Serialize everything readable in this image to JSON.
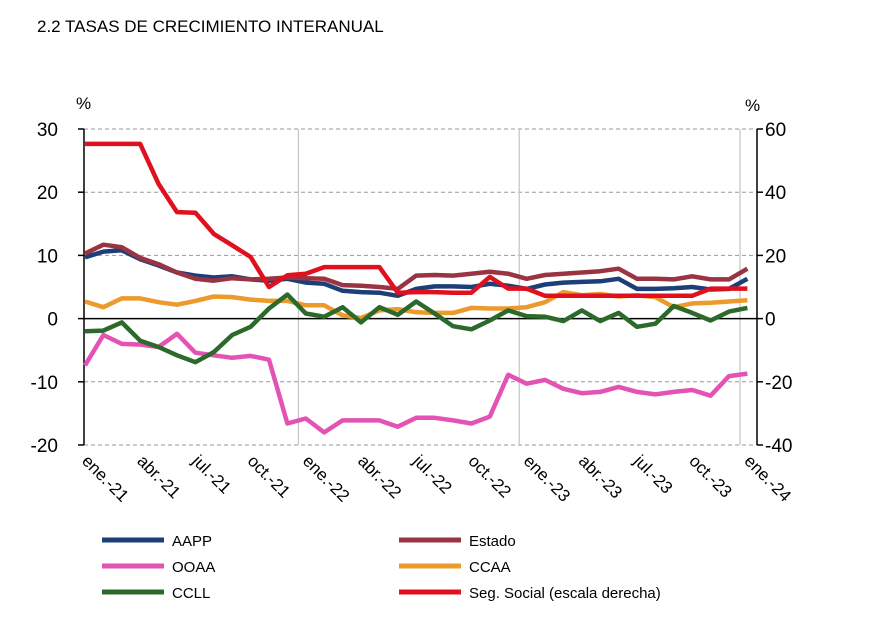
{
  "chart_data": {
    "type": "line",
    "title": "2.2 TASAS DE CRECIMIENTO INTERANUAL",
    "ylabel_left": "%",
    "ylabel_right": "%",
    "ylim_left": [
      -20,
      30
    ],
    "ylim_right": [
      -40,
      60
    ],
    "yticks_left": [
      "30",
      "20",
      "10",
      "0",
      "-10",
      "-20"
    ],
    "yticks_right": [
      "60",
      "40",
      "20",
      "0",
      "-20",
      "-40"
    ],
    "ytick_values_left": [
      30,
      20,
      10,
      0,
      -10,
      -20
    ],
    "xtick_labels": [
      "ene.-21",
      "abr.-21",
      "jul.-21",
      "oct.-21",
      "ene.-22",
      "abr.-22",
      "jul.-22",
      "oct.-22",
      "ene.-23",
      "abr.-23",
      "jul.-23",
      "oct.-23",
      "ene.-24"
    ],
    "x_count": 37,
    "legend": "bottom",
    "series": [
      {
        "name": "AAPP",
        "color": "#1d3f78",
        "axis": "left",
        "values": [
          9.7,
          10.6,
          10.8,
          9.4,
          8.4,
          7.3,
          6.8,
          6.5,
          6.7,
          6.2,
          6.0,
          6.3,
          5.7,
          5.5,
          4.4,
          4.2,
          4.1,
          3.6,
          4.7,
          5.1,
          5.1,
          5.0,
          5.5,
          5.2,
          4.7,
          5.4,
          5.7,
          5.8,
          5.9,
          6.3,
          4.7,
          4.7,
          4.8,
          5.0,
          4.6,
          4.7,
          6.3
        ]
      },
      {
        "name": "Estado",
        "color": "#9a3342",
        "axis": "left",
        "values": [
          10.3,
          11.7,
          11.3,
          9.6,
          8.6,
          7.3,
          6.3,
          6.0,
          6.4,
          6.2,
          6.3,
          6.5,
          6.4,
          6.3,
          5.3,
          5.2,
          5.0,
          4.7,
          6.8,
          6.9,
          6.8,
          7.1,
          7.4,
          7.1,
          6.3,
          6.9,
          7.1,
          7.3,
          7.5,
          7.9,
          6.3,
          6.3,
          6.2,
          6.7,
          6.2,
          6.2,
          7.9
        ]
      },
      {
        "name": "OOAA",
        "color": "#e353b4",
        "axis": "left",
        "values": [
          -7.4,
          -2.6,
          -4.0,
          -4.1,
          -4.5,
          -2.4,
          -5.4,
          -5.8,
          -6.2,
          -5.9,
          -6.5,
          -16.6,
          -15.8,
          -18.0,
          -16.1,
          -16.1,
          -16.1,
          -17.1,
          -15.7,
          -15.7,
          -16.1,
          -16.6,
          -15.5,
          -8.9,
          -10.3,
          -9.7,
          -11.1,
          -11.8,
          -11.6,
          -10.8,
          -11.6,
          -12.0,
          -11.6,
          -11.3,
          -12.2,
          -9.1,
          -8.7
        ]
      },
      {
        "name": "CCAA",
        "color": "#ec9a2b",
        "axis": "left",
        "values": [
          2.7,
          1.8,
          3.2,
          3.2,
          2.6,
          2.2,
          2.8,
          3.5,
          3.4,
          3.0,
          2.8,
          2.8,
          2.1,
          2.1,
          0.5,
          0.1,
          1.3,
          1.5,
          1.0,
          0.9,
          0.9,
          1.7,
          1.6,
          1.6,
          1.8,
          2.6,
          4.2,
          3.7,
          3.9,
          3.5,
          3.7,
          3.4,
          1.8,
          2.4,
          2.5,
          2.7,
          2.9
        ]
      },
      {
        "name": "CCLL",
        "color": "#2c6a2c",
        "axis": "left",
        "values": [
          -2.0,
          -1.9,
          -0.6,
          -3.5,
          -4.5,
          -5.8,
          -6.9,
          -5.3,
          -2.6,
          -1.3,
          1.6,
          3.8,
          0.8,
          0.3,
          1.8,
          -0.6,
          1.8,
          0.6,
          2.7,
          0.8,
          -1.2,
          -1.7,
          -0.3,
          1.3,
          0.4,
          0.3,
          -0.4,
          1.3,
          -0.4,
          0.9,
          -1.3,
          -0.8,
          2.0,
          0.9,
          -0.3,
          1.1,
          1.7
        ]
      },
      {
        "name": "Seg. Social (escala derecha)",
        "color": "#e0101e",
        "axis": "right",
        "values": [
          55.3,
          55.3,
          55.3,
          55.3,
          42.6,
          33.7,
          33.5,
          26.8,
          23.2,
          19.5,
          10.0,
          13.7,
          14.2,
          16.3,
          16.3,
          16.3,
          16.3,
          8.2,
          8.4,
          8.4,
          8.2,
          8.2,
          13.2,
          9.5,
          9.5,
          7.2,
          7.2,
          7.2,
          7.2,
          7.2,
          7.2,
          7.2,
          7.2,
          7.2,
          9.5,
          9.5,
          9.5
        ]
      }
    ]
  }
}
